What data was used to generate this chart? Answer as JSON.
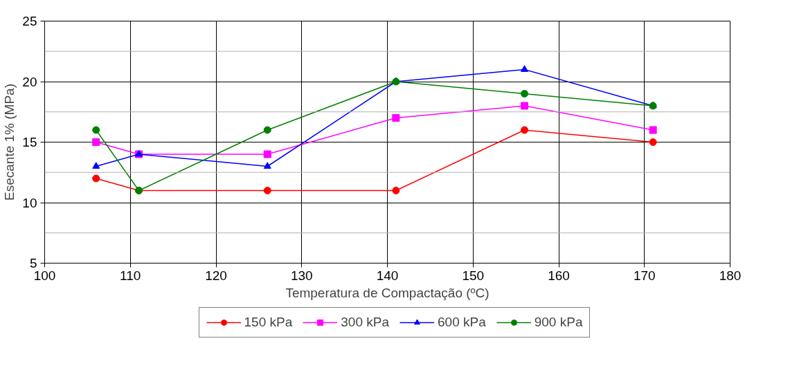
{
  "chart_data": {
    "type": "line",
    "xlabel": "Temperatura de Compactação (ºC)",
    "ylabel": "Esecante 1% (MPa)",
    "x": [
      106,
      111,
      126,
      141,
      156,
      171
    ],
    "series": [
      {
        "name": "150 kPa",
        "color": "#ff0000",
        "marker": "circle",
        "values": [
          12,
          11,
          11,
          11,
          16,
          15
        ]
      },
      {
        "name": "300 kPa",
        "color": "#ff00ff",
        "marker": "square",
        "values": [
          15,
          14,
          14,
          17,
          18,
          16
        ]
      },
      {
        "name": "600 kPa",
        "color": "#0000ff",
        "marker": "triangle",
        "values": [
          13,
          14,
          13,
          20,
          21,
          18
        ]
      },
      {
        "name": "900 kPa",
        "color": "#008000",
        "marker": "circle",
        "values": [
          16,
          11,
          16,
          20,
          19,
          18
        ]
      }
    ],
    "xlim": [
      100,
      180
    ],
    "xticks": [
      100,
      110,
      120,
      130,
      140,
      150,
      160,
      170,
      180
    ],
    "ylim": [
      5,
      25
    ],
    "yticks": [
      5,
      {
        "value": 7.5,
        "label": null
      },
      10,
      {
        "value": 12.5,
        "label": null
      },
      15,
      {
        "value": 17.5,
        "label": null
      },
      20,
      {
        "value": 22.5,
        "label": null
      },
      25
    ],
    "grid": true,
    "legend": "bottom",
    "line_style": "solid"
  }
}
